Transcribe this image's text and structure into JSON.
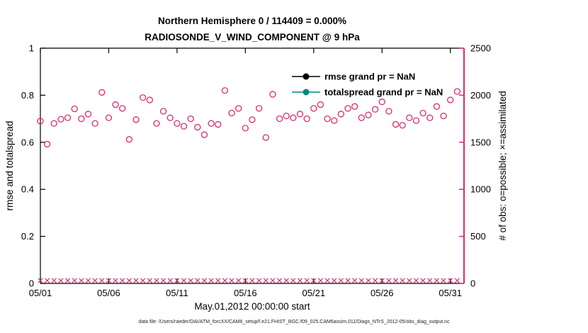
{
  "figure": {
    "title_line1": "Northern Hemisphere 0 / 114409 = 0.000%",
    "title_line2": "RADIOSONDE_V_WIND_COMPONENT @ 9 hPa",
    "xlabel": "May.01,2012 00:00:00 start",
    "ylabel_left": "rmse and totalspread",
    "ylabel_right": "# of obs: o=possible; ×=assimilated",
    "caption": "data file: /Users/raeder/DAI/ATM_forcXX/CAM6_setup/f.e21.FHIST_BGC.f09_025.CAM6assim.011/Diags_NTrS_2012-05/obs_diag_output.nc"
  },
  "legend": [
    {
      "label": "rmse grand pr = NaN",
      "line_color": "#000000",
      "marker": "filled-circle"
    },
    {
      "label": "totalspread grand pr = NaN",
      "line_color": "#00897e",
      "marker": "filled-circle"
    }
  ],
  "colors": {
    "obs": "#d92c6d",
    "legend_text": "#0000ff",
    "axis": "#000000",
    "teal": "#00897e"
  },
  "chart_data": {
    "type": "scatter",
    "x_domain_days": [
      0,
      31
    ],
    "x_ticks": {
      "positions_days": [
        0,
        5,
        10,
        15,
        20,
        25,
        30
      ],
      "labels": [
        "05/01",
        "05/06",
        "05/11",
        "05/16",
        "05/21",
        "05/26",
        "05/31"
      ]
    },
    "left_axis": {
      "min": 0,
      "max": 1,
      "ticks": [
        0,
        0.2,
        0.4,
        0.6,
        0.8,
        1
      ],
      "labels": [
        "0",
        "0.2",
        "0.4",
        "0.6",
        "0.8",
        "1"
      ]
    },
    "right_axis": {
      "min": 0,
      "max": 2500,
      "ticks": [
        0,
        500,
        1000,
        1500,
        2000,
        2500
      ],
      "labels": [
        "0",
        "500",
        "1000",
        "1500",
        "2000",
        "2500"
      ]
    },
    "x_days": [
      0,
      0.5,
      1,
      1.5,
      2,
      2.5,
      3,
      3.5,
      4,
      4.5,
      5,
      5.5,
      6,
      6.5,
      7,
      7.5,
      8,
      8.5,
      9,
      9.5,
      10,
      10.5,
      11,
      11.5,
      12,
      12.5,
      13,
      13.5,
      14,
      14.5,
      15,
      15.5,
      16,
      16.5,
      17,
      17.5,
      18,
      18.5,
      19,
      19.5,
      20,
      20.5,
      21,
      21.5,
      22,
      22.5,
      23,
      23.5,
      24,
      24.5,
      25,
      25.5,
      26,
      26.5,
      27,
      27.5,
      28,
      28.5,
      29,
      29.5,
      30,
      30.5
    ],
    "series": [
      {
        "name": "possible",
        "marker": "o",
        "axis": "right",
        "values": [
          1725,
          1480,
          1700,
          1745,
          1760,
          1855,
          1750,
          1800,
          1700,
          2030,
          1760,
          1900,
          1860,
          1530,
          1740,
          1975,
          1950,
          1700,
          1830,
          1760,
          1700,
          1670,
          1750,
          1660,
          1580,
          1700,
          1690,
          2050,
          1810,
          1860,
          1650,
          1740,
          1860,
          1550,
          2010,
          1750,
          1780,
          1760,
          1800,
          1750,
          1860,
          1900,
          1750,
          1730,
          1800,
          1860,
          1880,
          1760,
          1790,
          1850,
          1930,
          1830,
          1690,
          1680,
          1760,
          1730,
          1810,
          1760,
          1880,
          1780,
          1950,
          2040
        ]
      },
      {
        "name": "assimilated",
        "marker": "x",
        "axis": "right",
        "values": [
          0,
          0,
          0,
          0,
          0,
          0,
          0,
          0,
          0,
          0,
          0,
          0,
          0,
          0,
          0,
          0,
          0,
          0,
          0,
          0,
          0,
          0,
          0,
          0,
          0,
          0,
          0,
          0,
          0,
          0,
          0,
          0,
          0,
          0,
          0,
          0,
          0,
          0,
          0,
          0,
          0,
          0,
          0,
          0,
          0,
          0,
          0,
          0,
          0,
          0,
          0,
          0,
          0,
          0,
          0,
          0,
          0,
          0,
          0,
          0,
          0,
          0
        ]
      }
    ]
  }
}
